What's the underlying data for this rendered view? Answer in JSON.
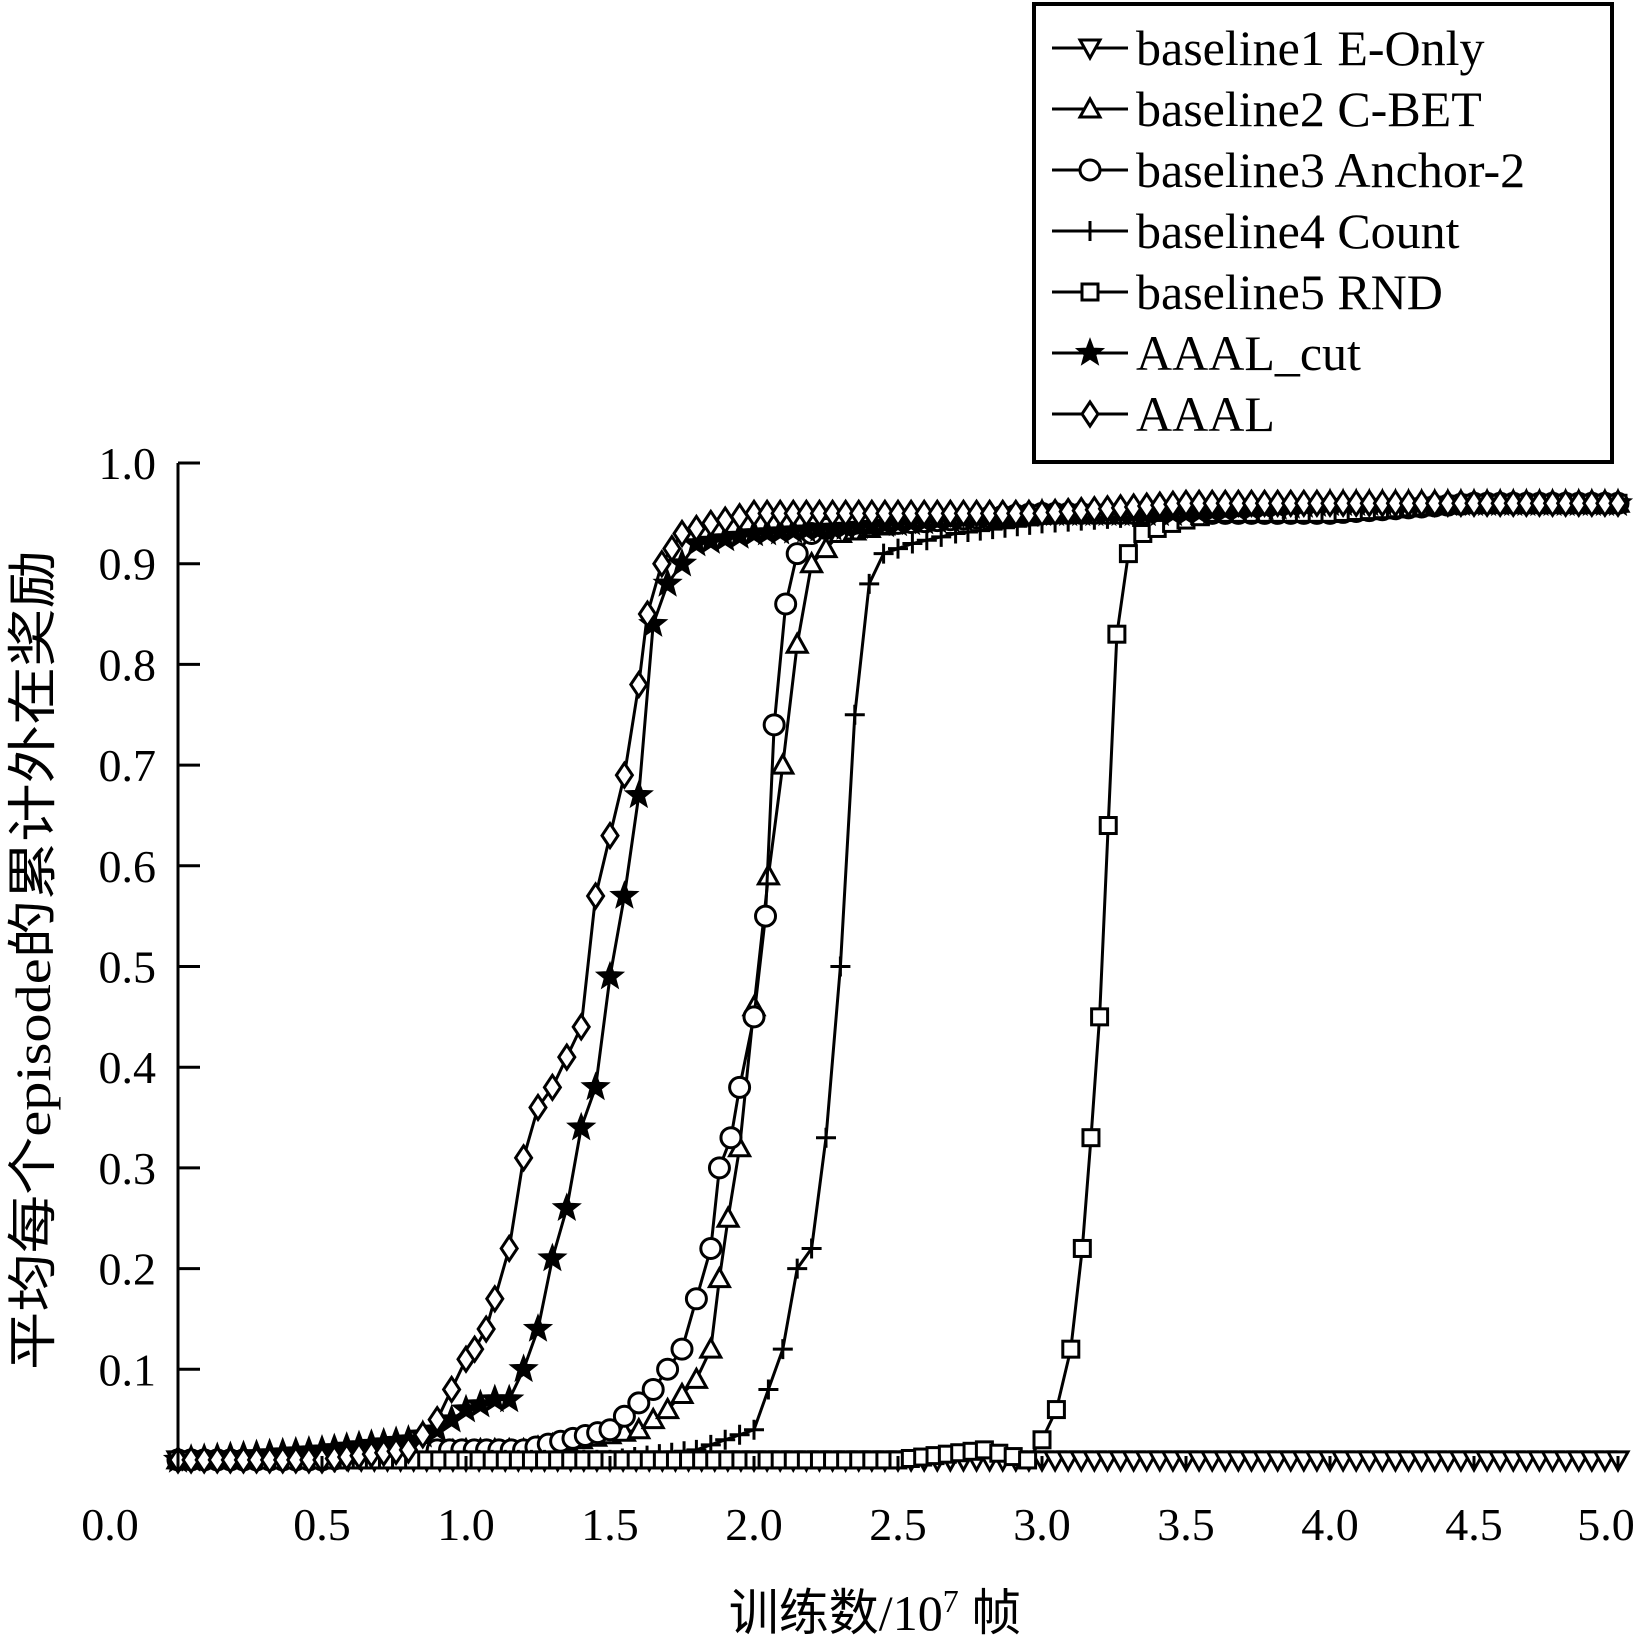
{
  "chart_data": {
    "type": "line",
    "xlabel": "训练数/10",
    "xlabel_exp": "7",
    "xlabel_unit": " 帧",
    "ylabel": "平均每个episode的累计外在奖励",
    "xlim": [
      0.0,
      5.0
    ],
    "ylim": [
      0.0,
      1.0
    ],
    "xticks": [
      "0.0",
      "0.5",
      "1.0",
      "1.5",
      "2.0",
      "2.5",
      "3.0",
      "3.5",
      "4.0",
      "4.5",
      "5.0"
    ],
    "yticks": [
      "0.1",
      "0.2",
      "0.3",
      "0.4",
      "0.5",
      "0.6",
      "0.7",
      "0.8",
      "0.9",
      "1.0"
    ],
    "grid": false,
    "legend_position": "top-right",
    "series": [
      {
        "name": "baseline1 E-Only",
        "marker": "triangle-down",
        "x": [
          0.0,
          0.5,
          1.0,
          1.5,
          2.0,
          2.5,
          3.0,
          3.5,
          4.0,
          4.5,
          5.0
        ],
        "y": [
          0.01,
          0.01,
          0.01,
          0.01,
          0.01,
          0.01,
          0.01,
          0.01,
          0.01,
          0.01,
          0.01
        ]
      },
      {
        "name": "baseline2 C-BET",
        "marker": "triangle-up",
        "x": [
          0.0,
          0.5,
          1.0,
          1.2,
          1.4,
          1.6,
          1.7,
          1.8,
          1.85,
          1.88,
          1.91,
          1.95,
          2.0,
          2.05,
          2.1,
          2.15,
          2.2,
          2.3,
          2.5,
          3.0,
          3.5,
          4.0,
          4.5,
          5.0
        ],
        "y": [
          0.01,
          0.01,
          0.02,
          0.02,
          0.03,
          0.04,
          0.06,
          0.09,
          0.12,
          0.19,
          0.25,
          0.32,
          0.46,
          0.59,
          0.7,
          0.82,
          0.9,
          0.93,
          0.94,
          0.95,
          0.95,
          0.95,
          0.96,
          0.96
        ]
      },
      {
        "name": "baseline3 Anchor-2",
        "marker": "circle",
        "x": [
          0.0,
          0.5,
          0.9,
          1.2,
          1.5,
          1.65,
          1.75,
          1.8,
          1.85,
          1.88,
          1.92,
          1.95,
          2.0,
          2.04,
          2.07,
          2.11,
          2.15,
          2.2,
          2.3,
          2.5,
          3.0,
          3.5,
          4.0,
          4.5,
          5.0
        ],
        "y": [
          0.01,
          0.01,
          0.02,
          0.02,
          0.04,
          0.08,
          0.12,
          0.17,
          0.22,
          0.3,
          0.33,
          0.38,
          0.45,
          0.55,
          0.74,
          0.86,
          0.91,
          0.93,
          0.94,
          0.94,
          0.95,
          0.95,
          0.95,
          0.96,
          0.96
        ]
      },
      {
        "name": "baseline4 Count",
        "marker": "plus",
        "x": [
          0.0,
          0.5,
          1.0,
          1.5,
          1.8,
          2.0,
          2.05,
          2.1,
          2.15,
          2.2,
          2.25,
          2.3,
          2.35,
          2.4,
          2.45,
          2.55,
          2.7,
          3.0,
          3.5,
          4.0,
          4.5,
          5.0
        ],
        "y": [
          0.01,
          0.01,
          0.01,
          0.01,
          0.02,
          0.04,
          0.08,
          0.12,
          0.2,
          0.22,
          0.33,
          0.5,
          0.75,
          0.88,
          0.91,
          0.92,
          0.93,
          0.94,
          0.95,
          0.95,
          0.96,
          0.96
        ]
      },
      {
        "name": "baseline5 RND",
        "marker": "square",
        "x": [
          0.0,
          0.5,
          1.0,
          1.5,
          2.0,
          2.5,
          2.8,
          2.95,
          3.0,
          3.05,
          3.1,
          3.14,
          3.17,
          3.2,
          3.23,
          3.26,
          3.3,
          3.35,
          3.45,
          3.6,
          4.0,
          4.5,
          5.0
        ],
        "y": [
          0.01,
          0.01,
          0.01,
          0.01,
          0.01,
          0.01,
          0.02,
          0.01,
          0.03,
          0.06,
          0.12,
          0.22,
          0.33,
          0.45,
          0.64,
          0.83,
          0.91,
          0.93,
          0.94,
          0.95,
          0.95,
          0.96,
          0.96
        ]
      },
      {
        "name": "AAAL_cut",
        "marker": "star",
        "x": [
          0.0,
          0.5,
          0.8,
          0.9,
          1.0,
          1.1,
          1.15,
          1.2,
          1.25,
          1.3,
          1.35,
          1.4,
          1.45,
          1.5,
          1.55,
          1.6,
          1.65,
          1.7,
          1.8,
          2.0,
          2.5,
          3.0,
          3.5,
          4.0,
          4.5,
          5.0
        ],
        "y": [
          0.01,
          0.02,
          0.03,
          0.04,
          0.06,
          0.07,
          0.07,
          0.1,
          0.14,
          0.21,
          0.26,
          0.34,
          0.38,
          0.49,
          0.57,
          0.67,
          0.84,
          0.88,
          0.92,
          0.93,
          0.94,
          0.95,
          0.95,
          0.96,
          0.96,
          0.96
        ]
      },
      {
        "name": "AAAL",
        "marker": "diamond",
        "x": [
          0.0,
          0.5,
          0.8,
          0.9,
          0.95,
          1.0,
          1.03,
          1.07,
          1.1,
          1.15,
          1.2,
          1.25,
          1.3,
          1.35,
          1.4,
          1.45,
          1.5,
          1.55,
          1.6,
          1.63,
          1.68,
          1.75,
          1.85,
          2.0,
          2.5,
          3.0,
          3.5,
          4.0,
          4.5,
          5.0
        ],
        "y": [
          0.01,
          0.01,
          0.02,
          0.05,
          0.08,
          0.11,
          0.12,
          0.14,
          0.17,
          0.22,
          0.31,
          0.36,
          0.38,
          0.41,
          0.44,
          0.57,
          0.63,
          0.69,
          0.78,
          0.85,
          0.9,
          0.93,
          0.94,
          0.95,
          0.95,
          0.95,
          0.96,
          0.96,
          0.96,
          0.96
        ]
      }
    ]
  }
}
